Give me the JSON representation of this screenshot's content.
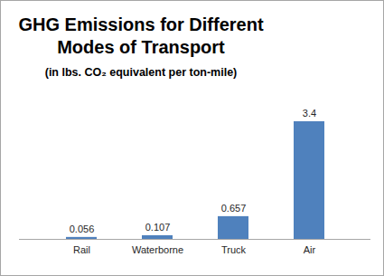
{
  "chart_data": {
    "type": "bar",
    "title": "GHG Emissions for Different Modes of Transport",
    "subtitle": "(in lbs. CO₂ equivalent per ton-mile)",
    "categories": [
      "Rail",
      "Waterborne",
      "Truck",
      "Air"
    ],
    "values": [
      0.056,
      0.107,
      0.657,
      3.4
    ],
    "color": "#4f81bd",
    "ylim": [
      0,
      3.4
    ],
    "grid": false,
    "data_labels": true,
    "tick_labels": "x"
  }
}
